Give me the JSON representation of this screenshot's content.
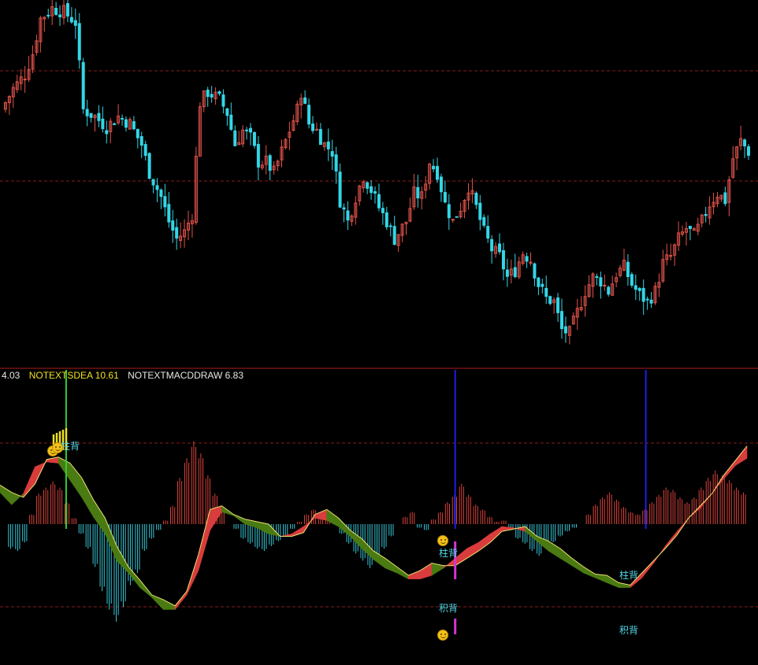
{
  "colors": {
    "background": "#000000",
    "candle_up": "#e0524a",
    "candle_down": "#33d6e6",
    "grid_dashed": "#8b1a1a",
    "panel_divider": "#b11c1c",
    "hist_pos": "#d9443c",
    "hist_neg": "#38c8d8",
    "ribbon_up": "#d93c3c",
    "ribbon_down": "#4a7a12",
    "signal_line": "#1e1ee6",
    "marker_green": "#33cc33",
    "marker_magenta": "#d235d2",
    "marker_yellow": "#f0e020",
    "label_cyan": "#4fd8e8"
  },
  "legend": {
    "first": "4.03",
    "dea": "NOTEXTSDEA 10.61",
    "macddraw": "NOTEXTMACDDRAW 6.83"
  },
  "labels": {
    "zhubei": "柱背",
    "jibei": "积背"
  },
  "chart_data": [
    {
      "type": "candlestick",
      "panel": "price",
      "title": "",
      "grid": "dashed horizontal",
      "ylim": [
        0,
        100
      ],
      "close_path": [
        [
          0,
          70
        ],
        [
          3,
          76
        ],
        [
          6,
          80
        ],
        [
          8,
          86
        ],
        [
          10,
          96
        ],
        [
          13,
          99
        ],
        [
          16,
          98
        ],
        [
          19,
          95
        ],
        [
          21,
          70
        ],
        [
          24,
          68
        ],
        [
          27,
          65
        ],
        [
          30,
          68
        ],
        [
          33,
          66
        ],
        [
          36,
          60
        ],
        [
          38,
          52
        ],
        [
          41,
          45
        ],
        [
          43,
          38
        ],
        [
          45,
          33
        ],
        [
          47,
          35
        ],
        [
          49,
          40
        ],
        [
          51,
          72
        ],
        [
          53,
          75
        ],
        [
          56,
          73
        ],
        [
          58,
          69
        ],
        [
          60,
          60
        ],
        [
          62,
          64
        ],
        [
          64,
          62
        ],
        [
          66,
          55
        ],
        [
          68,
          55
        ],
        [
          70,
          52
        ],
        [
          72,
          58
        ],
        [
          74,
          64
        ],
        [
          76,
          70
        ],
        [
          77,
          75
        ],
        [
          79,
          66
        ],
        [
          81,
          64
        ],
        [
          83,
          60
        ],
        [
          85,
          58
        ],
        [
          87,
          44
        ],
        [
          89,
          38
        ],
        [
          91,
          45
        ],
        [
          93,
          51
        ],
        [
          95,
          47
        ],
        [
          97,
          42
        ],
        [
          99,
          38
        ],
        [
          101,
          33
        ],
        [
          104,
          38
        ],
        [
          106,
          46
        ],
        [
          108,
          45
        ],
        [
          110,
          55
        ],
        [
          112,
          52
        ],
        [
          114,
          43
        ],
        [
          116,
          38
        ],
        [
          118,
          42
        ],
        [
          120,
          48
        ],
        [
          122,
          42
        ],
        [
          124,
          35
        ],
        [
          126,
          30
        ],
        [
          128,
          28
        ],
        [
          130,
          22
        ],
        [
          132,
          24
        ],
        [
          134,
          29
        ],
        [
          136,
          27
        ],
        [
          138,
          20
        ],
        [
          140,
          16
        ],
        [
          142,
          15
        ],
        [
          144,
          7
        ],
        [
          146,
          6
        ],
        [
          148,
          12
        ],
        [
          150,
          18
        ],
        [
          152,
          22
        ],
        [
          154,
          21
        ],
        [
          156,
          18
        ],
        [
          158,
          23
        ],
        [
          160,
          25
        ],
        [
          162,
          20
        ],
        [
          164,
          17
        ],
        [
          166,
          15
        ],
        [
          168,
          18
        ],
        [
          170,
          26
        ],
        [
          172,
          28
        ],
        [
          174,
          33
        ],
        [
          176,
          36
        ],
        [
          178,
          34
        ],
        [
          180,
          38
        ],
        [
          182,
          43
        ],
        [
          184,
          46
        ],
        [
          186,
          44
        ],
        [
          188,
          56
        ],
        [
          190,
          61
        ],
        [
          192,
          58
        ]
      ]
    },
    {
      "type": "area",
      "panel": "macd",
      "title": "",
      "grid": "dashed horizontal",
      "ylim": [
        -100,
        100
      ],
      "series": [
        {
          "x": [
            0,
            3,
            6,
            9,
            12,
            15,
            18,
            21,
            24,
            27,
            30,
            33,
            36,
            39,
            42,
            45,
            48,
            51,
            54,
            57,
            60,
            63,
            66,
            69,
            72,
            75,
            78,
            81,
            84,
            87,
            90,
            93,
            96,
            99,
            102,
            105,
            108,
            111,
            114,
            117,
            120,
            123,
            126,
            129,
            132,
            135,
            138,
            141,
            144,
            147,
            150,
            153,
            156,
            159,
            162,
            165,
            168,
            171,
            174,
            177,
            180,
            183,
            186,
            189,
            192
          ],
          "values": [
            32,
            26,
            22,
            33,
            53,
            55,
            50,
            38,
            20,
            5,
            -18,
            -35,
            -46,
            -58,
            -62,
            -67,
            -55,
            -25,
            12,
            15,
            8,
            4,
            2,
            0,
            -10,
            -10,
            -7,
            8,
            12,
            5,
            -5,
            -12,
            -22,
            -28,
            -35,
            -42,
            -38,
            -32,
            -34,
            -34,
            -28,
            -22,
            -15,
            -6,
            -4,
            -2,
            -10,
            -14,
            -20,
            -28,
            -35,
            -41,
            -42,
            -48,
            -50,
            -40,
            -30,
            -20,
            -9,
            5,
            15,
            25,
            40,
            52,
            64
          ]
        },
        {
          "x": [
            0,
            3,
            6,
            9,
            12,
            15,
            18,
            21,
            24,
            27,
            30,
            33,
            36,
            39,
            42,
            45,
            48,
            51,
            54,
            57,
            60,
            63,
            66,
            69,
            72,
            75,
            78,
            81,
            84,
            87,
            90,
            93,
            96,
            99,
            102,
            105,
            108,
            111,
            114,
            117,
            120,
            123,
            126,
            129,
            132,
            135,
            138,
            141,
            144,
            147,
            150,
            153,
            156,
            159,
            162,
            165,
            168,
            171,
            174,
            177,
            180,
            183,
            186,
            189,
            192
          ],
          "values": [
            26,
            16,
            25,
            47,
            51,
            50,
            36,
            22,
            6,
            -8,
            -30,
            -40,
            -52,
            -60,
            -70,
            -70,
            -58,
            -38,
            -5,
            10,
            7,
            0,
            -3,
            -8,
            -10,
            -8,
            -2,
            5,
            3,
            -2,
            -10,
            -20,
            -29,
            -36,
            -40,
            -45,
            -45,
            -42,
            -36,
            -28,
            -20,
            -15,
            -8,
            -2,
            -3,
            -6,
            -14,
            -22,
            -28,
            -34,
            -40,
            -44,
            -48,
            -52,
            -52,
            -44,
            -32,
            -18,
            -6,
            5,
            13,
            25,
            37,
            48,
            54
          ]
        }
      ],
      "histogram": [
        0,
        -20,
        -22,
        -15,
        8,
        25,
        30,
        35,
        30,
        18,
        5,
        -8,
        -20,
        -35,
        -55,
        -70,
        -80,
        -68,
        -50,
        -40,
        -22,
        -12,
        -5,
        3,
        15,
        38,
        54,
        68,
        58,
        40,
        25,
        10,
        0,
        -4,
        -12,
        -16,
        -20,
        -22,
        -18,
        -14,
        -10,
        -4,
        2,
        8,
        12,
        10,
        5,
        0,
        -8,
        -16,
        -24,
        -30,
        -36,
        -28,
        -20,
        -10,
        0,
        6,
        10,
        -3,
        -5,
        4,
        10,
        18,
        24,
        33,
        24,
        16,
        12,
        6,
        2,
        3,
        -5,
        -12,
        -16,
        -22,
        -26,
        -20,
        -15,
        -10,
        -6,
        -3,
        0,
        8,
        16,
        22,
        26,
        20,
        14,
        10,
        8,
        12,
        18,
        24,
        30,
        28,
        22,
        18,
        22,
        30,
        38,
        44,
        40,
        36,
        30,
        26
      ],
      "events": [
        {
          "x": 17,
          "label": "柱背"
        },
        {
          "x": 117,
          "label": "柱背"
        },
        {
          "x": 117,
          "label": "积背"
        },
        {
          "x": 166,
          "label": "柱背"
        },
        {
          "x": 166,
          "label": "积背"
        }
      ]
    }
  ]
}
